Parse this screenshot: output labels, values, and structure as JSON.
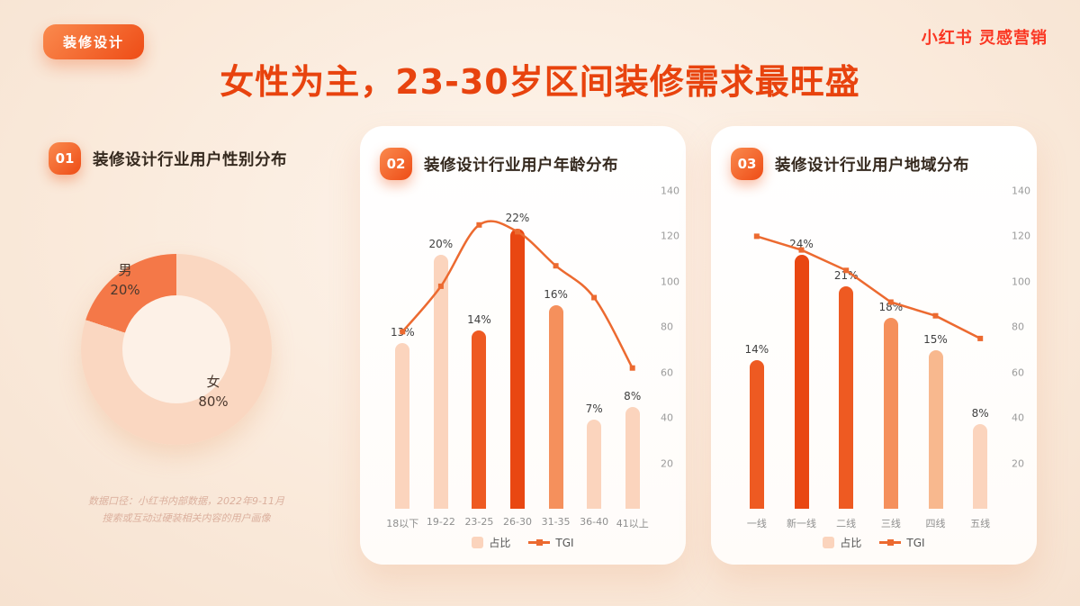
{
  "page": {
    "tag": "装修设计",
    "logo": "小红书 灵感营销",
    "title": "女性为主，23-30岁区间装修需求最旺盛",
    "footnote_line1": "数据口径：小红书内部数据，2022年9-11月",
    "footnote_line2": "搜索或互动过硬装相关内容的用户画像"
  },
  "panels": [
    {
      "number": "01",
      "title": "装修设计行业用户性别分布"
    },
    {
      "number": "02",
      "title": "装修设计行业用户年龄分布"
    },
    {
      "number": "03",
      "title": "装修设计行业用户地域分布"
    }
  ],
  "legend": {
    "bar_label": "占比",
    "line_label": "TGI"
  },
  "colors": {
    "accent": "#ee4c16",
    "title": "#e8430e",
    "logo_red": "#fa3723",
    "line": "#ec6a30",
    "bar_light": "#fbd4bd",
    "bar_mid": "#f5905c",
    "bar_mid_light": "#f8b88e",
    "bar_dark": "#ee5a22",
    "bar_darkest": "#e94712",
    "pie_male": "#f47848",
    "pie_female": "#fad7c1"
  },
  "chart_data": [
    {
      "type": "pie",
      "title": "装修设计行业用户性别分布",
      "labels": [
        "男",
        "女"
      ],
      "values": [
        20,
        80
      ],
      "unit": "%",
      "colors": [
        "#f47848",
        "#fad7c1"
      ],
      "style": "donut, male segment top-left, labels inside"
    },
    {
      "type": "bar+line",
      "title": "装修设计行业用户年龄分布",
      "categories": [
        "18以下",
        "19-22",
        "23-25",
        "26-30",
        "31-35",
        "36-40",
        "41以上"
      ],
      "series": [
        {
          "name": "占比",
          "type": "bar",
          "unit": "%",
          "values": [
            13,
            20,
            14,
            22,
            16,
            7,
            8
          ],
          "colors": [
            "#fbd4bd",
            "#fbd4bd",
            "#ee5a22",
            "#e94712",
            "#f5905c",
            "#fbd4bd",
            "#fbd4bd"
          ]
        },
        {
          "name": "TGI",
          "type": "line",
          "values": [
            78,
            98,
            125,
            122,
            107,
            93,
            62
          ]
        }
      ],
      "y2_ticks": [
        140,
        120,
        100,
        80,
        60,
        40,
        20
      ],
      "y2lim": [
        0,
        140
      ],
      "bar_axis_max": 25,
      "smooth": true,
      "grid": false,
      "legend_position": "bottom"
    },
    {
      "type": "bar+line",
      "title": "装修设计行业用户地域分布",
      "categories": [
        "一线",
        "新一线",
        "二线",
        "三线",
        "四线",
        "五线"
      ],
      "series": [
        {
          "name": "占比",
          "type": "bar",
          "unit": "%",
          "values": [
            14,
            24,
            21,
            18,
            15,
            8
          ],
          "colors": [
            "#ee5a22",
            "#e94712",
            "#ee5a22",
            "#f5905c",
            "#f8b88e",
            "#fbd4bd"
          ]
        },
        {
          "name": "TGI",
          "type": "line",
          "values": [
            120,
            114,
            105,
            91,
            85,
            75
          ]
        }
      ],
      "y2_ticks": [
        140,
        120,
        100,
        80,
        60,
        40,
        20
      ],
      "y2lim": [
        0,
        140
      ],
      "bar_axis_max": 30,
      "smooth": false,
      "grid": false,
      "legend_position": "bottom"
    }
  ]
}
